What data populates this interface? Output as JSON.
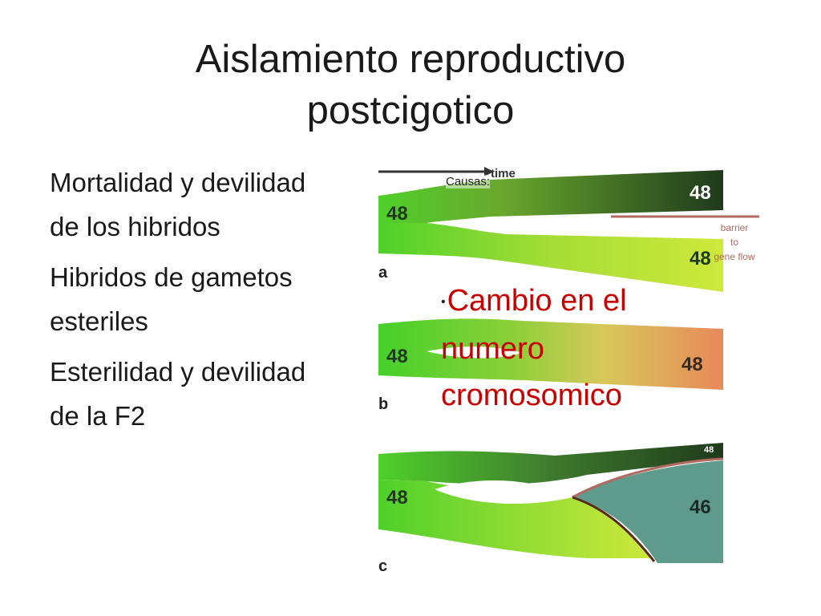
{
  "slide": {
    "title_line1": "Aislamiento reproductivo",
    "title_line2": "postcigotico"
  },
  "left_list": [
    {
      "text": "Mortalidad y devilidad de los hibridos"
    },
    {
      "text": "Hibridos de gametos esteriles"
    },
    {
      "text": "Esterilidad y devilidad de la F2"
    }
  ],
  "figure": {
    "time_label": "time",
    "barrier_label": [
      "barrier",
      "to",
      "gene flow"
    ],
    "panels": [
      {
        "letter": "a",
        "start": "48",
        "upper": "48",
        "lower": "48"
      },
      {
        "letter": "b",
        "start": "48",
        "end": "48"
      },
      {
        "letter": "c",
        "start": "48",
        "upper": "48",
        "lower": "46"
      }
    ],
    "colors": {
      "dark_green": "#1f3a1c",
      "mid_green": "#5ccf2a",
      "light_green": "#c8e83a",
      "orange": "#e8895a",
      "teal": "#5f9b8c",
      "barrier": "#b06a60"
    }
  },
  "causas_label": "Causas:",
  "bullet": {
    "dot": "•",
    "text": "Cambio en el numero cromosomico",
    "color": "#c80000"
  }
}
